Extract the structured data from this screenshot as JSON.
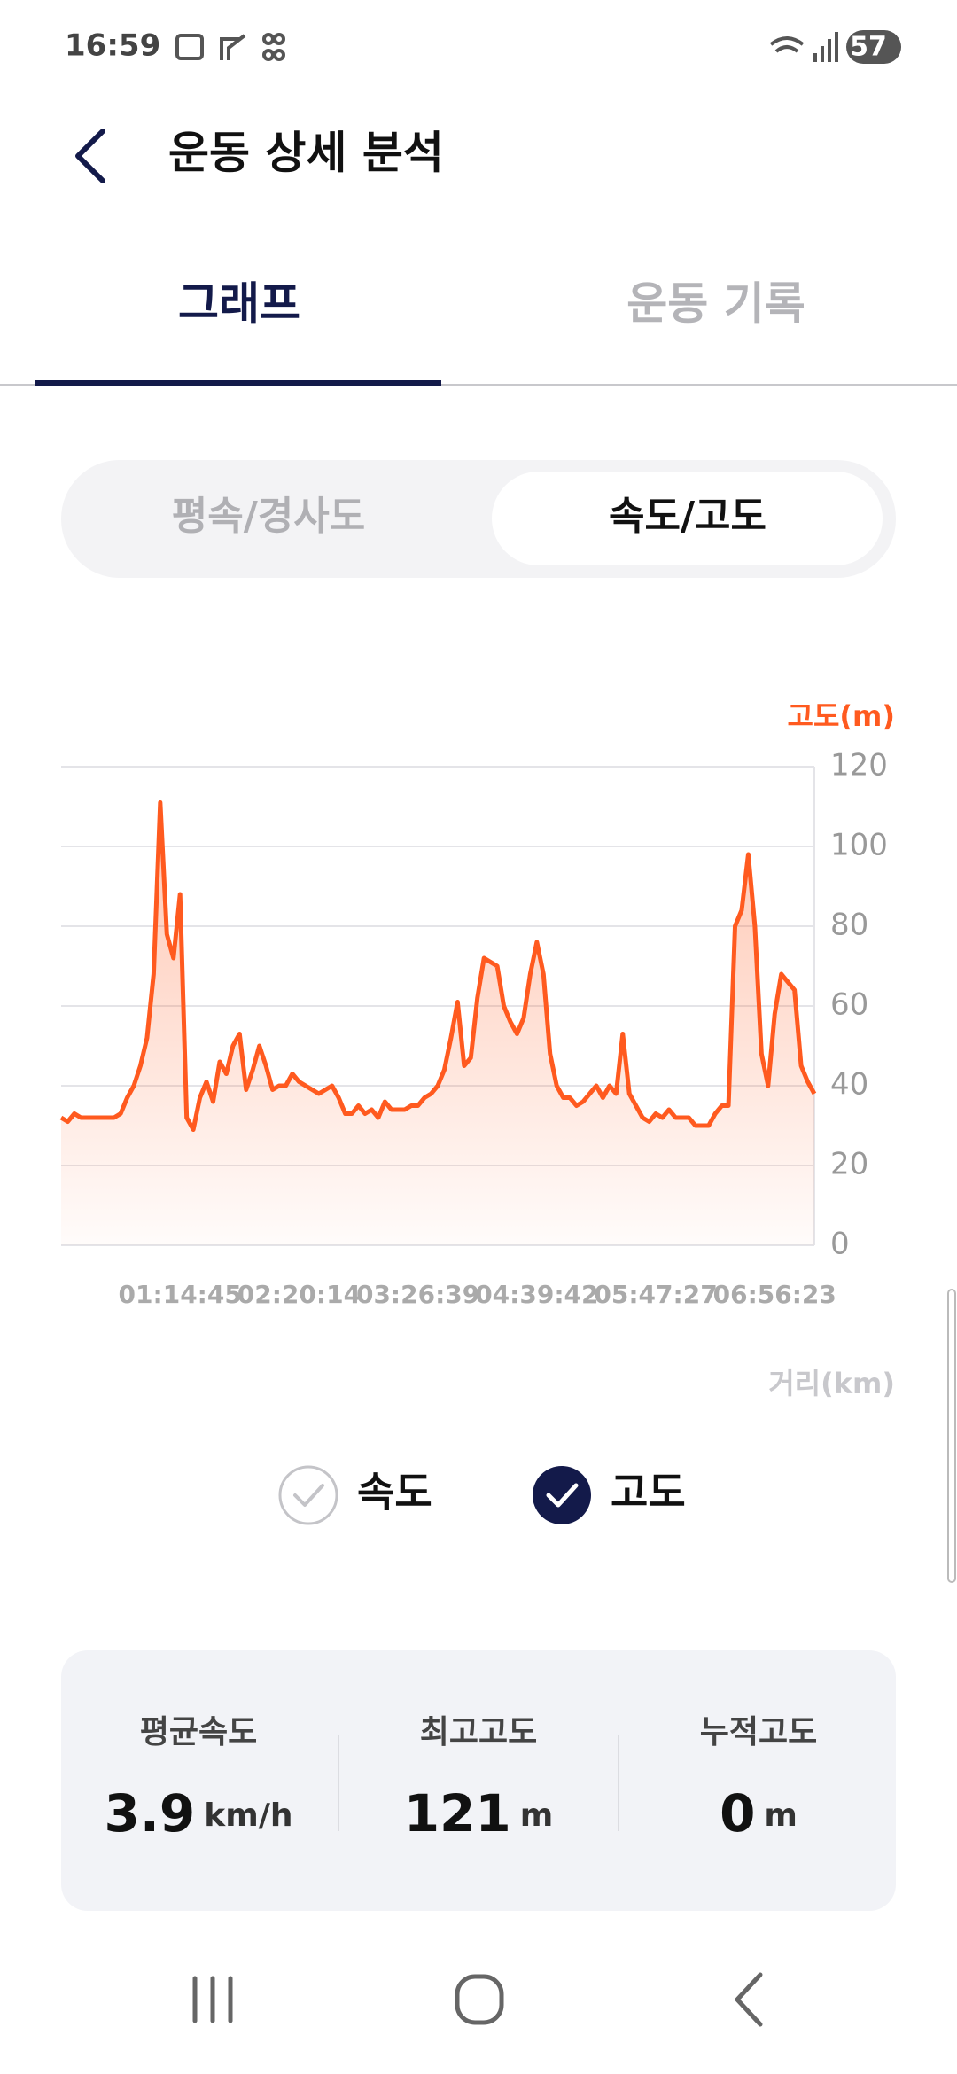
{
  "status_bar": {
    "time": "16:59",
    "battery": "57"
  },
  "header": {
    "title": "운동 상세 분석"
  },
  "tabs": [
    "그래프",
    "운동 기록"
  ],
  "segments": [
    "평속/경사도",
    "속도/고도"
  ],
  "chart_data": {
    "type": "area",
    "y2_label": "고도(m)",
    "x_label": "거리(km)",
    "categories": [
      null,
      null,
      null,
      null,
      null,
      null,
      null,
      null,
      null,
      null,
      null,
      null,
      null,
      null,
      null,
      null,
      null,
      null,
      "01:14:45",
      null,
      null,
      null,
      null,
      null,
      null,
      null,
      null,
      null,
      null,
      null,
      null,
      null,
      null,
      null,
      null,
      null,
      "02:20:14",
      null,
      null,
      null,
      null,
      null,
      null,
      null,
      null,
      null,
      null,
      null,
      null,
      null,
      null,
      null,
      null,
      null,
      "03:26:39",
      null,
      null,
      null,
      null,
      null,
      null,
      null,
      null,
      null,
      null,
      null,
      null,
      null,
      null,
      null,
      null,
      null,
      "04:39:42",
      null,
      null,
      null,
      null,
      null,
      null,
      null,
      null,
      null,
      null,
      null,
      null,
      null,
      null,
      null,
      null,
      null,
      "05:47:27",
      null,
      null,
      null,
      null,
      null,
      null,
      null,
      null,
      null,
      null,
      null,
      null,
      null,
      null,
      null,
      null,
      null,
      "06:56:23",
      null,
      null,
      null,
      null,
      null,
      null
    ],
    "values": [
      32,
      31,
      33,
      32,
      32,
      32,
      32,
      32,
      32,
      33,
      37,
      40,
      45,
      52,
      68,
      111,
      78,
      72,
      88,
      32,
      29,
      37,
      41,
      36,
      46,
      43,
      50,
      53,
      39,
      44,
      50,
      45,
      39,
      40,
      40,
      43,
      41,
      40,
      39,
      38,
      39,
      40,
      37,
      33,
      33,
      35,
      33,
      34,
      32,
      36,
      34,
      34,
      34,
      35,
      35,
      37,
      38,
      40,
      44,
      52,
      61,
      45,
      47,
      62,
      72,
      71,
      70,
      60,
      56,
      53,
      57,
      68,
      76,
      68,
      48,
      40,
      37,
      37,
      35,
      36,
      38,
      40,
      37,
      40,
      38,
      53,
      38,
      35,
      32,
      31,
      33,
      32,
      34,
      32,
      32,
      32,
      30,
      30,
      30,
      33,
      35,
      35,
      80,
      84,
      98,
      80,
      48,
      40,
      58,
      68,
      66,
      64,
      45,
      41,
      38
    ],
    "color": "#ff5a1f",
    "axis": "y2",
    "y2lim": [
      0,
      120
    ],
    "y2ticks": [
      0,
      20,
      40,
      60,
      80,
      100,
      120
    ],
    "grid": true
  },
  "toggles": [
    {
      "label": "속도",
      "checked": false
    },
    {
      "label": "고도",
      "checked": true
    }
  ],
  "stats": [
    {
      "label": "평균속도",
      "value": 3.9,
      "unit": "km/h"
    },
    {
      "label": "최고고도",
      "value": 121,
      "unit": "m"
    },
    {
      "label": "누적고도",
      "value": 0,
      "unit": "m"
    }
  ]
}
